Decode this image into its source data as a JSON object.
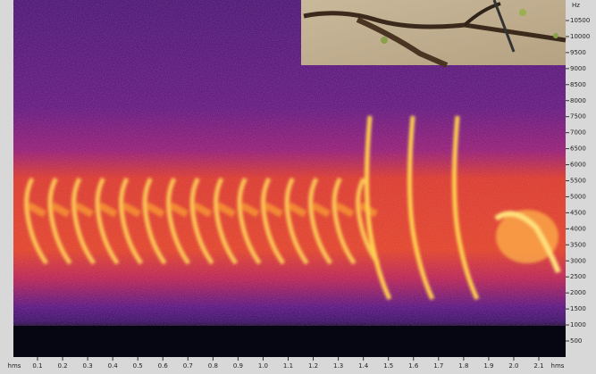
{
  "frequency_axis": {
    "unit": "Hz",
    "labels": [
      "10500",
      "10000",
      "9500",
      "9000",
      "8500",
      "8000",
      "7500",
      "7000",
      "6500",
      "6000",
      "5500",
      "5000",
      "4500",
      "4000",
      "3500",
      "3000",
      "2500",
      "2000",
      "1500",
      "1000",
      "500"
    ]
  },
  "time_axis": {
    "unit_left": "hms",
    "labels": [
      "0.1",
      "0.2",
      "0.3",
      "0.4",
      "0.5",
      "0.6",
      "0.7",
      "0.8",
      "0.9",
      "1.0",
      "1.1",
      "1.2",
      "1.3",
      "1.4",
      "1.5",
      "1.6",
      "1.7",
      "1.8",
      "1.9",
      "2.0",
      "2.1"
    ],
    "unit_right": "hms"
  }
}
